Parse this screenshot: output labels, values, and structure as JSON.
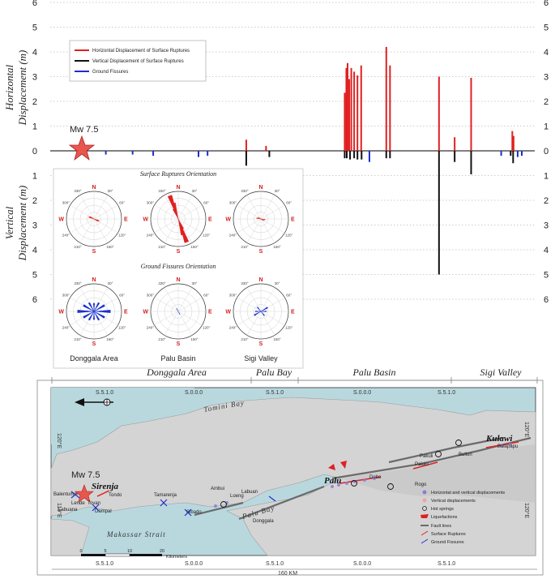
{
  "chart_data": {
    "type": "bar",
    "ylabel_top": [
      "Horizontal",
      "Displacement (m)"
    ],
    "ylabel_bottom": [
      "Vertical",
      "Displacement (m)"
    ],
    "y_ticks_left": [
      "6",
      "5",
      "4",
      "3",
      "2",
      "1",
      "0",
      "1",
      "2",
      "3",
      "4",
      "5",
      "6"
    ],
    "y_ticks_right": [
      "6",
      "5",
      "4",
      "3",
      "2",
      "1",
      "0",
      "1",
      "2",
      "3",
      "4",
      "5",
      "6"
    ],
    "ylim_horizontal": [
      0,
      6
    ],
    "ylim_vertical": [
      0,
      6
    ],
    "legend": {
      "horizontal": "Horizontal Displacement of Surface Ruptures",
      "vertical": "Vertical Displacement of Surface Ruptures",
      "fissures": "Ground Fissures"
    },
    "colors": {
      "horizontal": "#e02020",
      "vertical": "#111111",
      "fissures": "#1a2fd0"
    },
    "epicenter_label": "Mw 7.5",
    "horizontal_bars": [
      {
        "x": 0.476,
        "v": 0.45
      },
      {
        "x": 0.524,
        "v": 0.2
      },
      {
        "x": 0.715,
        "v": 2.35
      },
      {
        "x": 0.719,
        "v": 3.35
      },
      {
        "x": 0.722,
        "v": 3.55
      },
      {
        "x": 0.726,
        "v": 2.9
      },
      {
        "x": 0.731,
        "v": 3.35
      },
      {
        "x": 0.738,
        "v": 3.2
      },
      {
        "x": 0.746,
        "v": 3.05
      },
      {
        "x": 0.755,
        "v": 3.45
      },
      {
        "x": 0.816,
        "v": 4.2
      },
      {
        "x": 0.825,
        "v": 3.45
      },
      {
        "x": 0.944,
        "v": 3.0
      },
      {
        "x": 0.982,
        "v": 0.55
      },
      {
        "x": 1.022,
        "v": 2.95
      },
      {
        "x": 1.122,
        "v": 0.8
      },
      {
        "x": 1.125,
        "v": 0.6
      }
    ],
    "vertical_bars": [
      {
        "x": 0.476,
        "v": 0.6
      },
      {
        "x": 0.532,
        "v": 0.25
      },
      {
        "x": 0.715,
        "v": 0.3
      },
      {
        "x": 0.72,
        "v": 0.3
      },
      {
        "x": 0.728,
        "v": 0.35
      },
      {
        "x": 0.738,
        "v": 0.3
      },
      {
        "x": 0.746,
        "v": 0.35
      },
      {
        "x": 0.756,
        "v": 0.35
      },
      {
        "x": 0.816,
        "v": 0.3
      },
      {
        "x": 0.825,
        "v": 0.3
      },
      {
        "x": 0.944,
        "v": 5.0
      },
      {
        "x": 0.982,
        "v": 0.45
      },
      {
        "x": 1.022,
        "v": 0.95
      },
      {
        "x": 1.118,
        "v": 0.2
      },
      {
        "x": 1.124,
        "v": 0.5
      }
    ],
    "fissure_bars": [
      {
        "x": 0.135,
        "v": 0.15
      },
      {
        "x": 0.2,
        "v": 0.15
      },
      {
        "x": 0.25,
        "v": 0.2
      },
      {
        "x": 0.36,
        "v": 0.25
      },
      {
        "x": 0.382,
        "v": 0.2
      },
      {
        "x": 0.775,
        "v": 0.45
      },
      {
        "x": 1.095,
        "v": 0.2
      },
      {
        "x": 1.135,
        "v": 0.25
      },
      {
        "x": 1.145,
        "v": 0.2
      }
    ]
  },
  "rose_inset": {
    "title_ruptures": "Surface Ruptures Orientation",
    "title_fissures": "Ground Fissures Orientation",
    "dirs": {
      "n": "N",
      "e": "E",
      "s": "S",
      "w": "W"
    },
    "degs": [
      "30°",
      "60°",
      "120°",
      "150°",
      "210°",
      "240°",
      "300°",
      "330°"
    ],
    "labels": [
      "Donggala Area",
      "Palu Basin",
      "Sigi Valley"
    ]
  },
  "regions": [
    "Donggala Area",
    "Palu Bay",
    "Palu Basin",
    "Sigi Valley"
  ],
  "map": {
    "sea_labels": [
      "Tomini Bay",
      "Palu Bay",
      "Makassar Strait"
    ],
    "coords_top": [
      "S.5.1.0",
      "S.0.0.0",
      "S.5.1.0",
      "S.0.0.0",
      "S.5.1.0"
    ],
    "coords_bottom": [
      "S.5.1.0",
      "S.0.0.0",
      "S.5.1.0",
      "S.0.0.0",
      "S.5.1.0"
    ],
    "lon_left_top": "120°E",
    "lon_left_bottom": "119°E",
    "lon_right_top": "120°E",
    "lon_right_bottom": "120°E",
    "cities": {
      "sirenja": "Sirenja",
      "palu": "Palu",
      "kulawi": "Kulawi"
    },
    "epicenter": "Mw 7.5",
    "places": [
      "Balentuma",
      "Lende",
      "Tovan",
      "Labuana",
      "Dampal",
      "Tondo",
      "Tamarenja",
      "Sibado",
      "Ambui",
      "Loeng",
      "Labuan",
      "Donggala",
      "Dobo",
      "Palolo",
      "Bolapapu",
      "Bulluri",
      "Pakuli",
      "Rogo"
    ],
    "legend": [
      "Horizontal and vertical displacements",
      "Vertical displacements",
      "Hot springs",
      "Liquefactions",
      "Fault lines",
      "Surface Ruptures",
      "Ground Fissures"
    ],
    "scale": [
      "0",
      "5",
      "10",
      "20"
    ],
    "scale_unit": "Kilometers",
    "distance": "160 KM"
  }
}
